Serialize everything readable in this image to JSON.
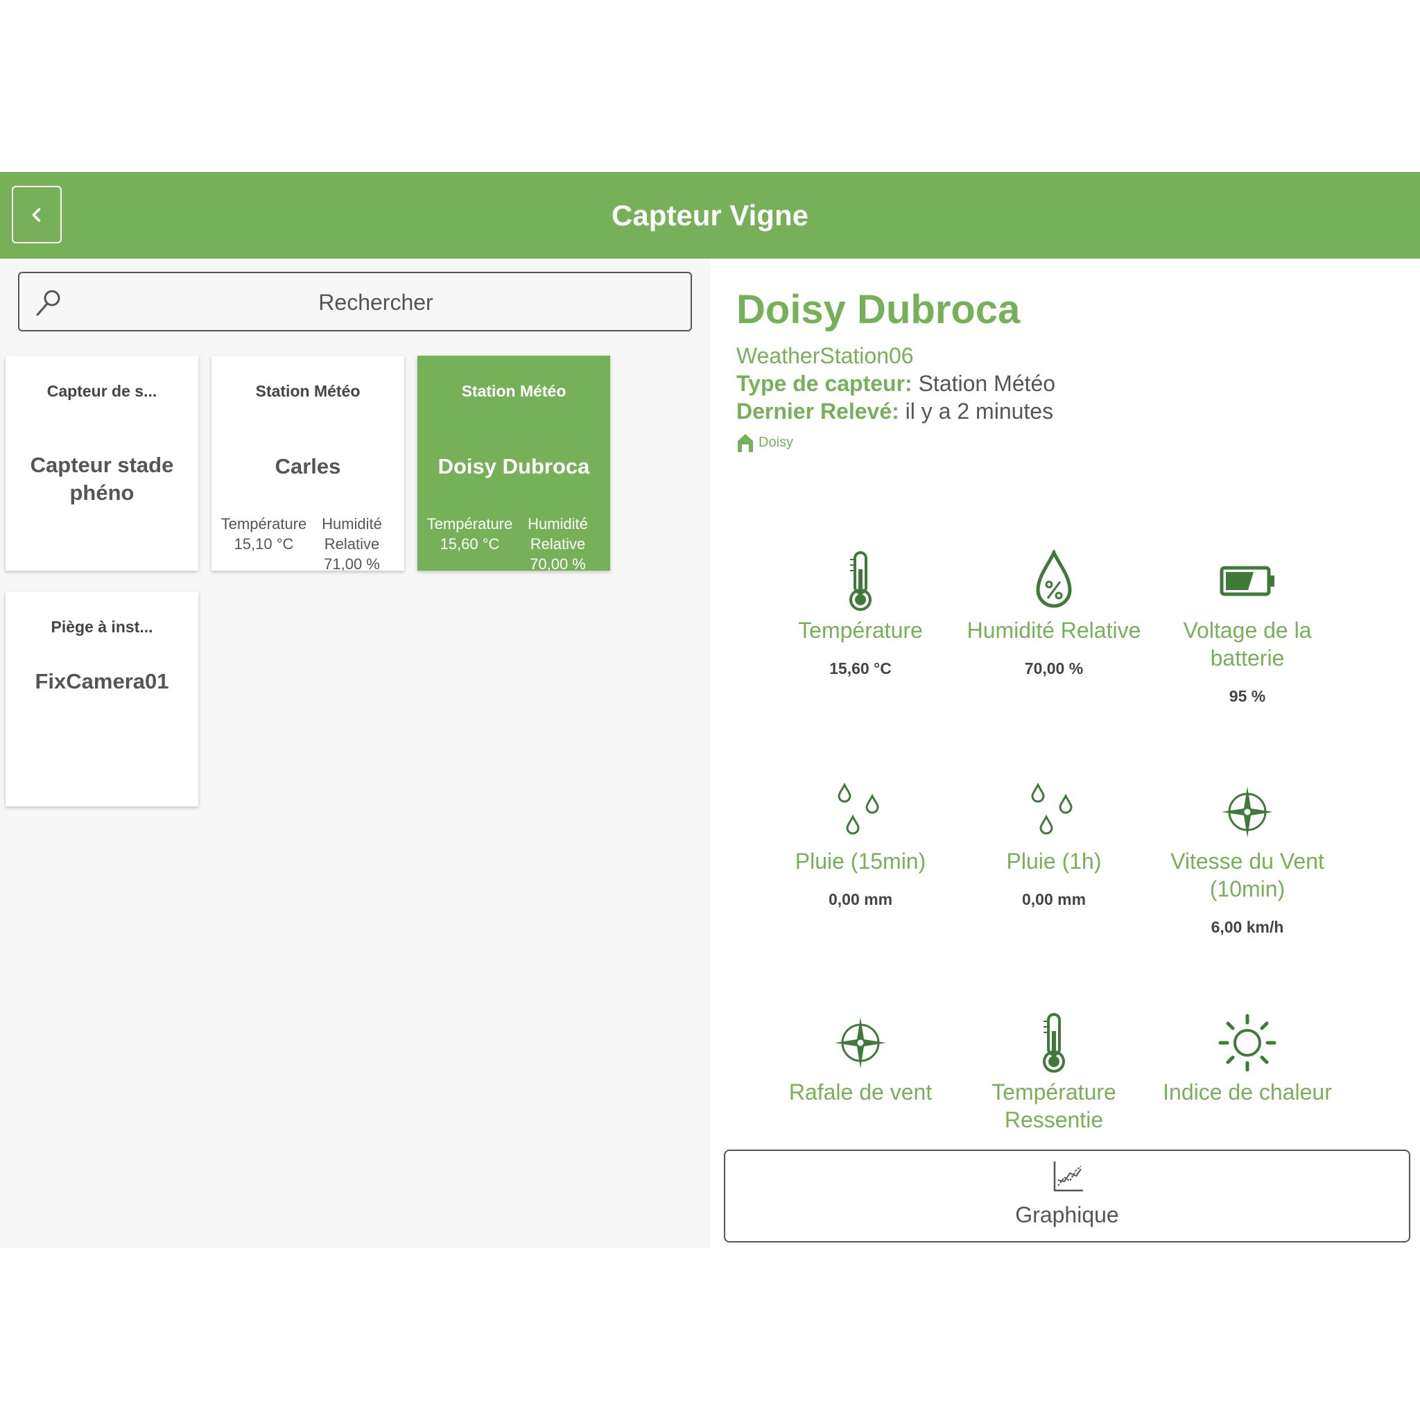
{
  "header": {
    "title": "Capteur Vigne"
  },
  "search": {
    "placeholder": "Rechercher"
  },
  "sensors": [
    {
      "category": "Capteur de s...",
      "name": "Capteur stade phéno"
    },
    {
      "category": "Station Météo",
      "name": "Carles",
      "metric1": "Température 15,10 °C",
      "metric2": "Humidité Relative 71,00 %"
    },
    {
      "category": "Station Météo",
      "name": "Doisy Dubroca",
      "metric1": "Température 15,60 °C",
      "metric2": "Humidité Relative 70,00 %",
      "selected": true
    },
    {
      "category": "Piège à inst...",
      "name": "FixCamera01"
    }
  ],
  "detail": {
    "title": "Doisy Dubroca",
    "station_id": "WeatherStation06",
    "type_label": "Type de capteur:",
    "type_value": "Station Météo",
    "last_label": "Dernier Relevé:",
    "last_value": "il y a 2 minutes",
    "location": "Doisy"
  },
  "measurements": [
    {
      "label": "Température",
      "value": "15,60 °C",
      "icon": "thermometer-icon"
    },
    {
      "label": "Humidité Relative",
      "value": "70,00 %",
      "icon": "humidity-drop-icon"
    },
    {
      "label": "Voltage de la batterie",
      "value": "95 %",
      "icon": "battery-icon"
    },
    {
      "label": "Pluie (15min)",
      "value": "0,00 mm",
      "icon": "rain-drops-icon"
    },
    {
      "label": "Pluie (1h)",
      "value": "0,00 mm",
      "icon": "rain-drops-icon"
    },
    {
      "label": "Vitesse du Vent (10min)",
      "value": "6,00 km/h",
      "icon": "compass-icon"
    },
    {
      "label": "Rafale de vent",
      "value": "",
      "icon": "compass-icon"
    },
    {
      "label": "Température Ressentie",
      "value": "",
      "icon": "thermometer-icon"
    },
    {
      "label": "Indice de chaleur",
      "value": "",
      "icon": "sun-icon"
    }
  ],
  "graph_button": {
    "label": "Graphique"
  },
  "colors": {
    "brand": "#76b058",
    "icon": "#3f7a3a",
    "background": "#f7f7f7"
  }
}
